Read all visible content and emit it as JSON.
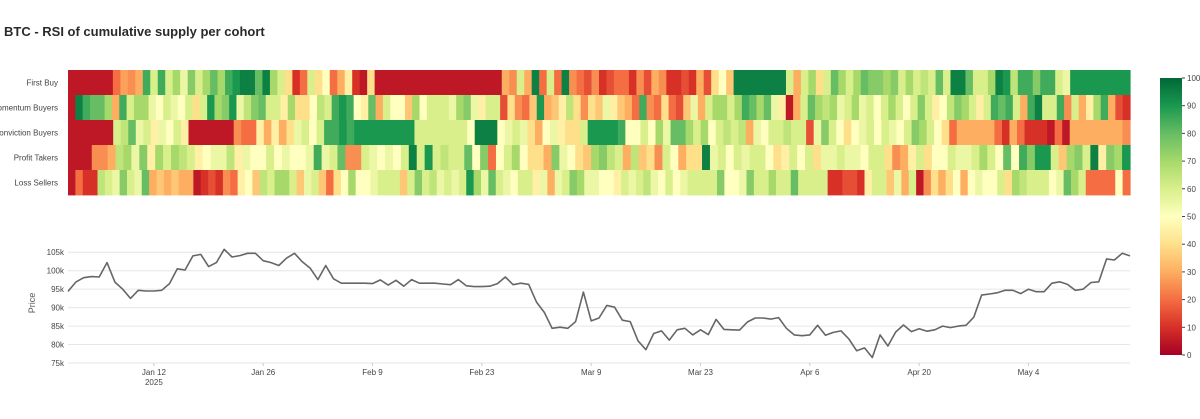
{
  "title": "BTC - RSI of cumulative supply per cohort",
  "colorscale": [
    [
      0,
      "#a50026"
    ],
    [
      0.1,
      "#d73027"
    ],
    [
      0.2,
      "#f46d43"
    ],
    [
      0.3,
      "#fdae61"
    ],
    [
      0.4,
      "#fee08b"
    ],
    [
      0.5,
      "#ffffbf"
    ],
    [
      0.6,
      "#d9ef8b"
    ],
    [
      0.7,
      "#a6d96a"
    ],
    [
      0.8,
      "#66bd63"
    ],
    [
      0.9,
      "#1a9850"
    ],
    [
      1,
      "#006837"
    ]
  ],
  "chart_data": [
    {
      "type": "heatmap",
      "title": "BTC - RSI of cumulative supply per cohort",
      "rows": [
        "First Buy",
        "Momentum Buyers",
        "Conviction Buyers",
        "Profit Takers",
        "Loss Sellers"
      ],
      "x_start": "2025-01-01",
      "cell_days": 1,
      "zlim": [
        0,
        100
      ],
      "colorbar_ticks": [
        0,
        10,
        20,
        30,
        40,
        50,
        60,
        70,
        80,
        90,
        100
      ],
      "z": [
        [
          5,
          5,
          5,
          5,
          5,
          5,
          20,
          28,
          25,
          30,
          85,
          60,
          85,
          60,
          70,
          55,
          75,
          60,
          70,
          80,
          70,
          85,
          90,
          95,
          95,
          80,
          95,
          70,
          60,
          40,
          10,
          20,
          60,
          40,
          50,
          20,
          30,
          45,
          10,
          5,
          40,
          5,
          5,
          5,
          5,
          5,
          5,
          5,
          5,
          5,
          5,
          5,
          5,
          5,
          5,
          5,
          5,
          5,
          30,
          25,
          60,
          30,
          95,
          20,
          60,
          20,
          95,
          25,
          20,
          15,
          25,
          10,
          15,
          20,
          20,
          10,
          25,
          15,
          30,
          25,
          10,
          10,
          15,
          10,
          30,
          15,
          40,
          50,
          35,
          95,
          95,
          95,
          95,
          95,
          95,
          95,
          60,
          30,
          60,
          70,
          40,
          60,
          80,
          70,
          60,
          70,
          80,
          75,
          75,
          70,
          75,
          60,
          70,
          60,
          65,
          60,
          80,
          60,
          95,
          95,
          80,
          60,
          60,
          70,
          95,
          90,
          65,
          85,
          85,
          75,
          85,
          85,
          60,
          55,
          90,
          90,
          90,
          90,
          90,
          90,
          90,
          90
        ],
        [
          5,
          95,
          85,
          80,
          80,
          70,
          30,
          85,
          60,
          70,
          70,
          55,
          50,
          60,
          55,
          50,
          60,
          40,
          60,
          90,
          70,
          75,
          90,
          55,
          65,
          75,
          80,
          60,
          60,
          45,
          70,
          40,
          40,
          50,
          65,
          60,
          85,
          90,
          85,
          50,
          45,
          80,
          30,
          60,
          50,
          50,
          35,
          70,
          50,
          60,
          60,
          60,
          55,
          70,
          75,
          55,
          45,
          60,
          60,
          15,
          40,
          25,
          20,
          35,
          90,
          30,
          35,
          45,
          65,
          40,
          25,
          40,
          35,
          55,
          45,
          35,
          30,
          20,
          85,
          25,
          20,
          40,
          20,
          15,
          35,
          55,
          30,
          60,
          70,
          70,
          60,
          70,
          85,
          80,
          70,
          80,
          55,
          45,
          5,
          30,
          60,
          80,
          70,
          65,
          70,
          55,
          60,
          70,
          55,
          60,
          50,
          60,
          70,
          60,
          50,
          60,
          75,
          60,
          45,
          50,
          65,
          75,
          70,
          60,
          45,
          60,
          85,
          80,
          85,
          60,
          30,
          85,
          95,
          60,
          60,
          85,
          25,
          60,
          30,
          45,
          70,
          85,
          30,
          15,
          10
        ],
        [
          5,
          5,
          5,
          5,
          5,
          5,
          60,
          65,
          80,
          55,
          60,
          45,
          55,
          50,
          60,
          45,
          5,
          5,
          5,
          5,
          5,
          5,
          25,
          20,
          20,
          45,
          30,
          45,
          30,
          40,
          55,
          60,
          50,
          60,
          85,
          85,
          90,
          85,
          90,
          90,
          90,
          90,
          90,
          90,
          90,
          90,
          60,
          60,
          60,
          60,
          60,
          60,
          60,
          50,
          95,
          95,
          95,
          50,
          55,
          60,
          55,
          40,
          30,
          50,
          55,
          45,
          40,
          40,
          60,
          90,
          90,
          90,
          90,
          85,
          50,
          50,
          60,
          50,
          70,
          55,
          80,
          80,
          70,
          60,
          70,
          50,
          60,
          65,
          60,
          65,
          30,
          55,
          50,
          60,
          60,
          65,
          60,
          60,
          15,
          55,
          75,
          60,
          50,
          40,
          50,
          55,
          60,
          50,
          60,
          55,
          50,
          60,
          75,
          70,
          60,
          50,
          40,
          20,
          30,
          30,
          30,
          30,
          30,
          20,
          10,
          30,
          20,
          10,
          10,
          10,
          5,
          20,
          5,
          30,
          30,
          30,
          30,
          30,
          30,
          30,
          25
        ],
        [
          5,
          5,
          5,
          25,
          25,
          30,
          65,
          70,
          55,
          75,
          45,
          70,
          60,
          70,
          65,
          60,
          45,
          50,
          55,
          55,
          65,
          45,
          55,
          50,
          50,
          60,
          50,
          55,
          50,
          50,
          55,
          85,
          55,
          60,
          80,
          25,
          25,
          60,
          55,
          50,
          55,
          50,
          60,
          95,
          60,
          90,
          60,
          65,
          60,
          60,
          80,
          50,
          75,
          20,
          50,
          60,
          70,
          50,
          40,
          40,
          30,
          75,
          55,
          50,
          40,
          35,
          70,
          75,
          65,
          60,
          30,
          65,
          35,
          40,
          25,
          60,
          50,
          30,
          40,
          40,
          95,
          55,
          60,
          50,
          60,
          55,
          60,
          60,
          50,
          40,
          45,
          60,
          50,
          60,
          40,
          55,
          55,
          60,
          55,
          55,
          50,
          60,
          60,
          40,
          25,
          30,
          45,
          60,
          40,
          50,
          50,
          60,
          55,
          55,
          60,
          70,
          60,
          50,
          80,
          50,
          85,
          75,
          90,
          90,
          60,
          35,
          70,
          75,
          60,
          95,
          45,
          75,
          70,
          90
        ],
        [
          5,
          20,
          10,
          10,
          65,
          60,
          55,
          75,
          60,
          55,
          80,
          30,
          35,
          30,
          35,
          30,
          30,
          5,
          10,
          15,
          10,
          25,
          20,
          45,
          50,
          35,
          65,
          60,
          70,
          70,
          60,
          35,
          55,
          60,
          35,
          20,
          40,
          50,
          70,
          50,
          50,
          55,
          60,
          60,
          60,
          35,
          60,
          75,
          60,
          65,
          55,
          60,
          55,
          60,
          90,
          70,
          55,
          80,
          60,
          55,
          50,
          60,
          60,
          45,
          55,
          30,
          55,
          60,
          75,
          70,
          55,
          55,
          50,
          50,
          45,
          60,
          55,
          60,
          65,
          55,
          50,
          60,
          50,
          55,
          60,
          60,
          60,
          60,
          75,
          50,
          50,
          55,
          75,
          60,
          60,
          70,
          60,
          60,
          80,
          60,
          60,
          60,
          60,
          10,
          10,
          15,
          15,
          10,
          45,
          60,
          60,
          35,
          55,
          30,
          60,
          5,
          25,
          40,
          30,
          40,
          50,
          30,
          50,
          55,
          50,
          50,
          60,
          40,
          70,
          65,
          60,
          60,
          60,
          50,
          55,
          80,
          70,
          60,
          20,
          20,
          20,
          20,
          50,
          20
        ]
      ]
    },
    {
      "type": "line",
      "ylabel": "Price",
      "xlabel": "",
      "ylim": [
        75000,
        107500
      ],
      "y_ticks": [
        75000,
        80000,
        85000,
        90000,
        95000,
        100000,
        105000
      ],
      "y_tick_labels": [
        "75k",
        "80k",
        "85k",
        "90k",
        "95k",
        "100k",
        "105k"
      ],
      "x_tick_dates": [
        "2025-01-12",
        "2025-01-26",
        "2025-02-09",
        "2025-02-23",
        "2025-03-09",
        "2025-03-23",
        "2025-04-06",
        "2025-04-20",
        "2025-05-04"
      ],
      "x_tick_labels": [
        "Jan 12",
        "Jan 26",
        "Feb 9",
        "Feb 23",
        "Mar 9",
        "Mar 23",
        "Apr 6",
        "Apr 20",
        "May 4"
      ],
      "x_tick_sublabel": "2025",
      "series": [
        {
          "color": "#666666",
          "x_start": "2025-01-01",
          "values": [
            94400,
            96900,
            98100,
            98400,
            98300,
            102200,
            96900,
            95000,
            92500,
            94700,
            94500,
            94500,
            94700,
            96500,
            100500,
            100200,
            104000,
            104400,
            101100,
            102200,
            105800,
            103700,
            104100,
            104700,
            104700,
            102700,
            102200,
            101400,
            103400,
            104700,
            102400,
            100700,
            97600,
            101400,
            97800,
            96600,
            96600,
            96600,
            96600,
            96500,
            97500,
            96100,
            97400,
            95800,
            97600,
            96600,
            96600,
            96600,
            96400,
            96200,
            97600,
            95900,
            95700,
            95700,
            95800,
            96500,
            98300,
            96200,
            96600,
            96300,
            91500,
            88700,
            84400,
            84700,
            84400,
            86200,
            94200,
            86400,
            87200,
            90600,
            90100,
            86600,
            86200,
            81000,
            78600,
            83000,
            83700,
            81200,
            84000,
            84400,
            82600,
            84000,
            82700,
            86800,
            84100,
            84000,
            83900,
            86100,
            87200,
            87200,
            86900,
            87300,
            84400,
            82600,
            82400,
            82600,
            85200,
            82500,
            83300,
            83700,
            81500,
            78300,
            79100,
            76500,
            82600,
            79600,
            83400,
            85300,
            83500,
            84300,
            83600,
            84000,
            85000,
            84600,
            85000,
            85200,
            87400,
            93400,
            93700,
            94000,
            94700,
            94700,
            93800,
            95000,
            94300,
            94300,
            96600,
            97000,
            96300,
            94700,
            95000,
            96800,
            97000,
            103200,
            102900,
            104700,
            104000
          ]
        }
      ]
    }
  ]
}
